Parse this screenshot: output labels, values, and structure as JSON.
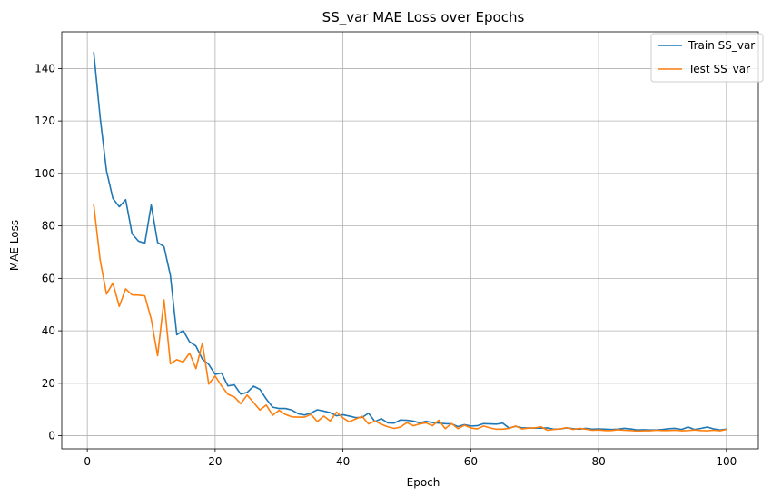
{
  "chart_data": {
    "type": "line",
    "title": "SS_var MAE Loss over Epochs",
    "xlabel": "Epoch",
    "ylabel": "MAE Loss",
    "xlim": [
      -4,
      105
    ],
    "ylim": [
      -5,
      154
    ],
    "xticks": [
      0,
      20,
      40,
      60,
      80,
      100
    ],
    "yticks": [
      0,
      20,
      40,
      60,
      80,
      100,
      120,
      140
    ],
    "grid": true,
    "legend_position": "top-right",
    "x": [
      1,
      2,
      3,
      4,
      5,
      6,
      7,
      8,
      9,
      10,
      11,
      12,
      13,
      14,
      15,
      16,
      17,
      18,
      19,
      20,
      21,
      22,
      23,
      24,
      25,
      26,
      27,
      28,
      29,
      30,
      31,
      32,
      33,
      34,
      35,
      36,
      37,
      38,
      39,
      40,
      41,
      42,
      43,
      44,
      45,
      46,
      47,
      48,
      49,
      50,
      51,
      52,
      53,
      54,
      55,
      56,
      57,
      58,
      59,
      60,
      61,
      62,
      63,
      64,
      65,
      66,
      67,
      68,
      69,
      70,
      71,
      72,
      73,
      74,
      75,
      76,
      77,
      78,
      79,
      80,
      81,
      82,
      83,
      84,
      85,
      86,
      87,
      88,
      89,
      90,
      91,
      92,
      93,
      94,
      95,
      96,
      97,
      98,
      99,
      100
    ],
    "series": [
      {
        "name": "Train SS_var",
        "color": "#1f77b4",
        "values": [
          146.3,
          121.5,
          101.0,
          90.5,
          87.3,
          90.0,
          77.0,
          74.2,
          73.4,
          88.0,
          73.7,
          72.1,
          61.1,
          38.5,
          40.1,
          35.8,
          34.2,
          29.2,
          27.2,
          23.4,
          23.9,
          19.0,
          19.4,
          15.9,
          16.5,
          18.9,
          17.7,
          14.0,
          10.9,
          10.4,
          10.4,
          9.8,
          8.4,
          7.9,
          8.7,
          9.9,
          9.4,
          8.8,
          7.6,
          8.0,
          7.5,
          6.9,
          7.0,
          8.6,
          5.4,
          6.5,
          4.9,
          4.8,
          6.0,
          5.9,
          5.6,
          4.9,
          5.5,
          5.0,
          4.8,
          4.6,
          4.5,
          3.5,
          4.2,
          3.7,
          3.8,
          4.6,
          4.5,
          4.4,
          4.8,
          2.9,
          3.6,
          3.0,
          3.0,
          2.9,
          2.9,
          3.0,
          2.5,
          2.6,
          3.0,
          2.7,
          2.5,
          2.8,
          2.5,
          2.6,
          2.5,
          2.4,
          2.5,
          2.8,
          2.6,
          2.2,
          2.3,
          2.2,
          2.2,
          2.4,
          2.7,
          2.8,
          2.4,
          3.3,
          2.4,
          2.8,
          3.3,
          2.6,
          2.2,
          2.5
        ]
      },
      {
        "name": "Test SS_var",
        "color": "#ff7f0e",
        "values": [
          88.2,
          67.1,
          54.0,
          58.2,
          49.3,
          56.0,
          53.7,
          53.6,
          53.3,
          44.5,
          30.5,
          51.8,
          27.4,
          29.0,
          28.1,
          31.5,
          25.6,
          35.3,
          19.7,
          22.8,
          19.0,
          15.8,
          14.8,
          12.2,
          15.5,
          12.7,
          9.8,
          11.7,
          7.8,
          9.7,
          8.1,
          7.2,
          7.1,
          7.1,
          8.1,
          5.4,
          7.5,
          5.6,
          9.0,
          6.8,
          5.3,
          6.4,
          7.4,
          4.5,
          5.6,
          4.4,
          3.4,
          2.8,
          3.3,
          5.0,
          3.8,
          4.5,
          4.9,
          3.8,
          5.9,
          2.7,
          4.6,
          2.7,
          4.0,
          3.0,
          2.6,
          3.7,
          3.0,
          2.5,
          2.5,
          2.8,
          3.7,
          2.6,
          2.9,
          3.0,
          3.4,
          2.1,
          2.4,
          2.6,
          3.1,
          2.4,
          2.8,
          2.5,
          2.1,
          2.2,
          2.0,
          2.0,
          2.3,
          2.1,
          2.0,
          1.8,
          1.9,
          1.9,
          2.1,
          2.0,
          2.0,
          2.1,
          1.9,
          2.0,
          2.2,
          2.0,
          1.9,
          2.1,
          1.9,
          2.4
        ]
      }
    ]
  }
}
